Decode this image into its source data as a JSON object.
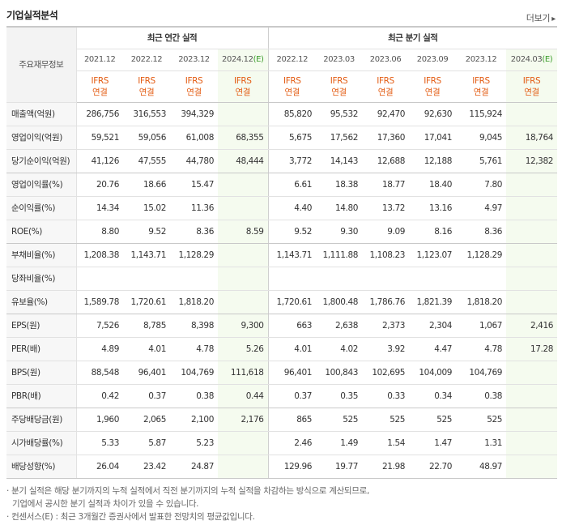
{
  "section_title": "기업실적분석",
  "more_label": "더보기",
  "more_arrow": "▸",
  "row_header_label": "주요재무정보",
  "annual_header": "최근 연간 실적",
  "quarter_header": "최근 분기 실적",
  "annual_periods": [
    {
      "label": "2021.12",
      "est": ""
    },
    {
      "label": "2022.12",
      "est": ""
    },
    {
      "label": "2023.12",
      "est": ""
    },
    {
      "label": "2024.12",
      "est": "(E)"
    }
  ],
  "quarter_periods": [
    {
      "label": "2022.12",
      "est": ""
    },
    {
      "label": "2023.03",
      "est": ""
    },
    {
      "label": "2023.06",
      "est": ""
    },
    {
      "label": "2023.09",
      "est": ""
    },
    {
      "label": "2023.12",
      "est": ""
    },
    {
      "label": "2024.03",
      "est": "(E)"
    }
  ],
  "standard_line1": "IFRS",
  "standard_line2": "연결",
  "rows": [
    {
      "label": "매출액(억원)",
      "values": [
        "286,756",
        "316,553",
        "394,329",
        "",
        "85,820",
        "95,532",
        "92,470",
        "92,630",
        "115,924",
        ""
      ]
    },
    {
      "label": "영업이익(억원)",
      "values": [
        "59,521",
        "59,056",
        "61,008",
        "68,355",
        "5,675",
        "17,562",
        "17,360",
        "17,041",
        "9,045",
        "18,764"
      ]
    },
    {
      "label": "당기순이익(억원)",
      "values": [
        "41,126",
        "47,555",
        "44,780",
        "48,444",
        "3,772",
        "14,143",
        "12,688",
        "12,188",
        "5,761",
        "12,382"
      ]
    },
    {
      "label": "영업이익률(%)",
      "values": [
        "20.76",
        "18.66",
        "15.47",
        "",
        "6.61",
        "18.38",
        "18.77",
        "18.40",
        "7.80",
        ""
      ]
    },
    {
      "label": "순이익률(%)",
      "values": [
        "14.34",
        "15.02",
        "11.36",
        "",
        "4.40",
        "14.80",
        "13.72",
        "13.16",
        "4.97",
        ""
      ]
    },
    {
      "label": "ROE(%)",
      "values": [
        "8.80",
        "9.52",
        "8.36",
        "8.59",
        "9.52",
        "9.30",
        "9.09",
        "8.16",
        "8.36",
        ""
      ]
    },
    {
      "label": "부채비율(%)",
      "values": [
        "1,208.38",
        "1,143.71",
        "1,128.29",
        "",
        "1,143.71",
        "1,111.88",
        "1,108.23",
        "1,123.07",
        "1,128.29",
        ""
      ]
    },
    {
      "label": "당좌비율(%)",
      "values": [
        "",
        "",
        "",
        "",
        "",
        "",
        "",
        "",
        "",
        ""
      ]
    },
    {
      "label": "유보율(%)",
      "values": [
        "1,589.78",
        "1,720.61",
        "1,818.20",
        "",
        "1,720.61",
        "1,800.48",
        "1,786.76",
        "1,821.39",
        "1,818.20",
        ""
      ]
    },
    {
      "label": "EPS(원)",
      "values": [
        "7,526",
        "8,785",
        "8,398",
        "9,300",
        "663",
        "2,638",
        "2,373",
        "2,304",
        "1,067",
        "2,416"
      ]
    },
    {
      "label": "PER(배)",
      "values": [
        "4.89",
        "4.01",
        "4.78",
        "5.26",
        "4.01",
        "4.02",
        "3.92",
        "4.47",
        "4.78",
        "17.28"
      ]
    },
    {
      "label": "BPS(원)",
      "values": [
        "88,548",
        "96,401",
        "104,769",
        "111,618",
        "96,401",
        "100,843",
        "102,695",
        "104,009",
        "104,769",
        ""
      ]
    },
    {
      "label": "PBR(배)",
      "values": [
        "0.42",
        "0.37",
        "0.38",
        "0.44",
        "0.37",
        "0.35",
        "0.33",
        "0.34",
        "0.38",
        ""
      ]
    },
    {
      "label": "주당배당금(원)",
      "values": [
        "1,960",
        "2,065",
        "2,100",
        "2,176",
        "865",
        "525",
        "525",
        "525",
        "525",
        ""
      ]
    },
    {
      "label": "시가배당률(%)",
      "values": [
        "5.33",
        "5.87",
        "5.23",
        "",
        "2.46",
        "1.49",
        "1.54",
        "1.47",
        "1.31",
        ""
      ]
    },
    {
      "label": "배당성향(%)",
      "values": [
        "26.04",
        "23.42",
        "24.87",
        "",
        "129.96",
        "19.77",
        "21.98",
        "22.70",
        "48.97",
        ""
      ]
    }
  ],
  "notes": {
    "line1": "· 분기 실적은 해당 분기까지의 누적 실적에서 직전 분기까지의 누적 실적을 차감하는 방식으로 계산되므로,",
    "line2": "기업에서 공시한 분기 실적과 차이가 있을 수 있습니다.",
    "line3": "· 컨센서스(E) : 최근 3개월간 증권사에서 발표한 전망치의 평균값입니다."
  },
  "colors": {
    "standard_text": "#e35c13",
    "estimate_bg": "#f5fbef",
    "estimate_mark": "#3a9c2a"
  }
}
